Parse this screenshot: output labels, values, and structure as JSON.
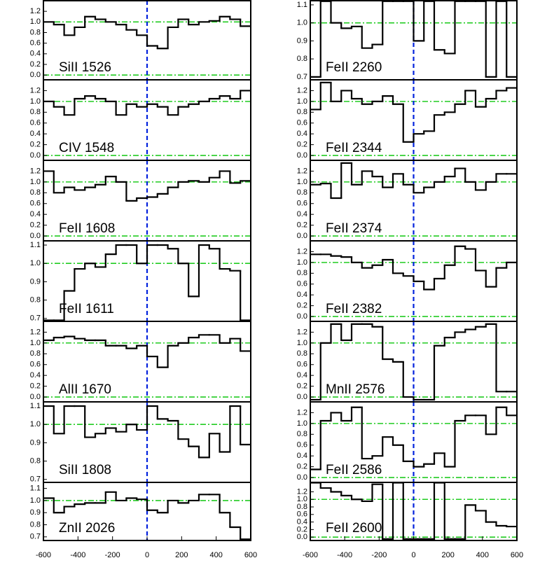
{
  "chart_data": [
    {
      "type": "step",
      "label": "SiII 1526",
      "xlim": [
        -600,
        600
      ],
      "ylim": [
        -0.09,
        1.4
      ],
      "yticks": [
        {
          "value": 0,
          "label": "0.0"
        },
        0.2,
        0.4,
        0.6,
        0.8,
        {
          "value": 1,
          "label": "1.0"
        },
        1.2
      ],
      "hlines": [
        0,
        1
      ],
      "vlines": [
        0
      ],
      "color": "#000000",
      "x": [
        -570,
        -510,
        -450,
        -390,
        -330,
        -270,
        -210,
        -150,
        -90,
        -30,
        30,
        90,
        150,
        210,
        270,
        330,
        390,
        450,
        510,
        570
      ],
      "values": [
        1.0,
        0.95,
        0.75,
        0.9,
        1.1,
        1.05,
        1.0,
        0.95,
        0.85,
        0.75,
        0.55,
        0.5,
        0.9,
        1.05,
        0.95,
        1.0,
        1.02,
        1.1,
        1.05,
        0.92
      ]
    },
    {
      "type": "step",
      "label": "CIV 1548",
      "xlim": [
        -600,
        600
      ],
      "ylim": [
        -0.09,
        1.4
      ],
      "yticks": [
        {
          "value": 0,
          "label": "0.0"
        },
        0.2,
        0.4,
        0.6,
        0.8,
        {
          "value": 1,
          "label": "1.0"
        },
        1.2
      ],
      "hlines": [
        0,
        1
      ],
      "vlines": [
        0
      ],
      "color": "#000000",
      "x": [
        -570,
        -510,
        -450,
        -390,
        -330,
        -270,
        -210,
        -150,
        -90,
        -30,
        30,
        90,
        150,
        210,
        270,
        330,
        390,
        450,
        510,
        570
      ],
      "values": [
        1.0,
        0.9,
        0.75,
        1.05,
        1.1,
        1.05,
        1.0,
        0.75,
        0.95,
        0.9,
        0.95,
        0.9,
        0.75,
        0.9,
        0.95,
        1.0,
        1.05,
        1.1,
        1.05,
        1.2
      ]
    },
    {
      "type": "step",
      "label": "FeII 1608",
      "xlim": [
        -600,
        600
      ],
      "ylim": [
        -0.09,
        1.4
      ],
      "yticks": [
        {
          "value": 0,
          "label": "0.0"
        },
        0.2,
        0.4,
        0.6,
        0.8,
        {
          "value": 1,
          "label": "1.0"
        },
        1.2
      ],
      "hlines": [
        0,
        1
      ],
      "vlines": [
        0
      ],
      "color": "#000000",
      "x": [
        -570,
        -510,
        -450,
        -390,
        -330,
        -270,
        -210,
        -150,
        -90,
        -30,
        30,
        90,
        150,
        210,
        270,
        330,
        390,
        450,
        510,
        570
      ],
      "values": [
        1.2,
        0.8,
        0.9,
        0.85,
        0.9,
        0.95,
        1.1,
        1.0,
        0.65,
        0.7,
        0.72,
        0.78,
        0.9,
        1.0,
        1.02,
        1.0,
        1.08,
        1.2,
        0.98,
        1.02
      ]
    },
    {
      "type": "step",
      "label": "FeII 1611",
      "xlim": [
        -600,
        600
      ],
      "ylim": [
        0.684,
        1.123
      ],
      "yticks": [
        0.7,
        0.8,
        0.9,
        {
          "value": 1,
          "label": "1.0"
        },
        1.1
      ],
      "hlines": [
        1
      ],
      "vlines": [
        0
      ],
      "color": "#000000",
      "x": [
        -570,
        -510,
        -450,
        -390,
        -330,
        -270,
        -210,
        -150,
        -90,
        -30,
        30,
        90,
        150,
        210,
        270,
        330,
        390,
        450,
        510,
        570
      ],
      "values": [
        0.69,
        0.69,
        0.85,
        0.97,
        1.0,
        0.98,
        1.05,
        1.1,
        1.1,
        1.0,
        1.1,
        1.1,
        1.08,
        1.0,
        0.82,
        1.1,
        1.08,
        0.97,
        0.96,
        0.69
      ]
    },
    {
      "type": "step",
      "label": "AlII 1670",
      "xlim": [
        -600,
        600
      ],
      "ylim": [
        -0.09,
        1.4
      ],
      "yticks": [
        {
          "value": 0,
          "label": "0.0"
        },
        0.2,
        0.4,
        0.6,
        0.8,
        {
          "value": 1,
          "label": "1.0"
        },
        1.2
      ],
      "hlines": [
        0,
        1
      ],
      "vlines": [
        0
      ],
      "color": "#000000",
      "x": [
        -570,
        -510,
        -450,
        -390,
        -330,
        -270,
        -210,
        -150,
        -90,
        -30,
        30,
        90,
        150,
        210,
        270,
        330,
        390,
        450,
        510,
        570
      ],
      "values": [
        1.05,
        1.1,
        1.12,
        1.08,
        1.05,
        1.05,
        0.95,
        0.95,
        0.9,
        0.95,
        0.75,
        0.55,
        0.95,
        1.0,
        1.1,
        1.15,
        1.15,
        1.0,
        1.08,
        0.85
      ]
    },
    {
      "type": "step",
      "label": "SiII 1808",
      "xlim": [
        -600,
        600
      ],
      "ylim": [
        0.684,
        1.123
      ],
      "yticks": [
        0.7,
        0.8,
        0.9,
        {
          "value": 1,
          "label": "1.0"
        },
        1.1
      ],
      "hlines": [
        1
      ],
      "vlines": [
        0
      ],
      "color": "#000000",
      "x": [
        -570,
        -510,
        -450,
        -390,
        -330,
        -270,
        -210,
        -150,
        -90,
        -30,
        30,
        90,
        150,
        210,
        270,
        330,
        390,
        450,
        510,
        570
      ],
      "values": [
        1.1,
        0.95,
        1.1,
        1.1,
        0.93,
        0.95,
        0.98,
        0.96,
        1.0,
        0.97,
        1.1,
        1.03,
        1.02,
        0.92,
        0.88,
        0.82,
        0.95,
        0.85,
        1.1,
        0.89
      ]
    },
    {
      "type": "step",
      "label": "ZnII 2026",
      "xlim": [
        -600,
        600
      ],
      "ylim": [
        0.67,
        1.15
      ],
      "yticks": [
        0.7,
        0.8,
        0.9,
        {
          "value": 1,
          "label": "1.0"
        },
        1.1
      ],
      "xticks": [
        -600,
        -400,
        -200,
        0,
        200,
        400,
        600
      ],
      "hlines": [
        1
      ],
      "vlines": [
        0
      ],
      "color": "#000000",
      "x": [
        -570,
        -510,
        -450,
        -390,
        -330,
        -270,
        -210,
        -150,
        -90,
        -30,
        30,
        90,
        150,
        210,
        270,
        330,
        390,
        450,
        510,
        570
      ],
      "values": [
        1.02,
        0.9,
        0.95,
        0.97,
        0.98,
        0.98,
        1.07,
        1.0,
        1.02,
        1.01,
        0.92,
        0.9,
        1.0,
        0.98,
        1.0,
        1.05,
        1.05,
        0.9,
        0.78,
        0.68
      ]
    },
    {
      "type": "step",
      "label": "FeII 2260",
      "xlim": [
        -600,
        600
      ],
      "ylim": [
        0.684,
        1.123
      ],
      "yticks": [
        0.7,
        0.8,
        0.9,
        {
          "value": 1,
          "label": "1.0"
        },
        1.1
      ],
      "hlines": [
        1
      ],
      "vlines": [
        0
      ],
      "color": "#000000",
      "x": [
        -570,
        -510,
        -450,
        -390,
        -330,
        -270,
        -210,
        -150,
        -90,
        -30,
        30,
        90,
        150,
        210,
        270,
        330,
        390,
        450,
        510,
        570
      ],
      "values": [
        0.7,
        1.12,
        1.0,
        0.97,
        0.98,
        0.86,
        0.88,
        1.12,
        1.12,
        1.12,
        0.9,
        1.12,
        0.85,
        0.83,
        1.12,
        1.12,
        1.12,
        0.7,
        1.12,
        0.7
      ]
    },
    {
      "type": "step",
      "label": "FeII 2344",
      "xlim": [
        -600,
        600
      ],
      "ylim": [
        -0.09,
        1.4
      ],
      "yticks": [
        {
          "value": 0,
          "label": "0.0"
        },
        0.2,
        0.4,
        0.6,
        0.8,
        {
          "value": 1,
          "label": "1.0"
        },
        1.2
      ],
      "hlines": [
        0,
        1
      ],
      "vlines": [
        0
      ],
      "color": "#000000",
      "x": [
        -570,
        -510,
        -450,
        -390,
        -330,
        -270,
        -210,
        -150,
        -90,
        -30,
        30,
        90,
        150,
        210,
        270,
        330,
        390,
        450,
        510,
        570
      ],
      "values": [
        0.85,
        1.35,
        1.0,
        1.2,
        1.05,
        0.95,
        1.0,
        1.1,
        0.95,
        0.25,
        0.4,
        0.45,
        0.75,
        0.8,
        0.95,
        1.2,
        0.9,
        1.05,
        1.2,
        1.25
      ]
    },
    {
      "type": "step",
      "label": "FeII 2374",
      "xlim": [
        -600,
        600
      ],
      "ylim": [
        -0.09,
        1.4
      ],
      "yticks": [
        {
          "value": 0,
          "label": "0.0"
        },
        0.2,
        0.4,
        0.6,
        0.8,
        {
          "value": 1,
          "label": "1.0"
        },
        1.2
      ],
      "hlines": [
        0,
        1
      ],
      "vlines": [
        0
      ],
      "color": "#000000",
      "x": [
        -570,
        -510,
        -450,
        -390,
        -330,
        -270,
        -210,
        -150,
        -90,
        -30,
        30,
        90,
        150,
        210,
        270,
        330,
        390,
        450,
        510,
        570
      ],
      "values": [
        0.95,
        0.97,
        0.7,
        1.35,
        0.95,
        1.2,
        1.1,
        0.9,
        1.15,
        0.95,
        0.8,
        0.9,
        1.0,
        1.1,
        1.25,
        1.0,
        0.85,
        1.0,
        1.15,
        1.15
      ]
    },
    {
      "type": "step",
      "label": "FeII 2382",
      "xlim": [
        -600,
        600
      ],
      "ylim": [
        -0.09,
        1.4
      ],
      "yticks": [
        {
          "value": 0,
          "label": "0.0"
        },
        0.2,
        0.4,
        0.6,
        0.8,
        {
          "value": 1,
          "label": "1.0"
        },
        1.2
      ],
      "hlines": [
        0,
        1
      ],
      "vlines": [
        0
      ],
      "color": "#000000",
      "x": [
        -570,
        -510,
        -450,
        -390,
        -330,
        -270,
        -210,
        -150,
        -90,
        -30,
        30,
        90,
        150,
        210,
        270,
        330,
        390,
        450,
        510,
        570
      ],
      "values": [
        1.15,
        1.15,
        1.12,
        1.1,
        1.0,
        0.9,
        0.95,
        1.05,
        0.8,
        0.75,
        0.65,
        0.5,
        0.7,
        0.95,
        1.3,
        1.25,
        0.85,
        0.55,
        0.9,
        1.0
      ]
    },
    {
      "type": "step",
      "label": "MnII 2576",
      "xlim": [
        -600,
        600
      ],
      "ylim": [
        -0.09,
        1.4
      ],
      "yticks": [
        {
          "value": 0,
          "label": "0.0"
        },
        0.2,
        0.4,
        0.6,
        0.8,
        {
          "value": 1,
          "label": "1.0"
        },
        1.2
      ],
      "hlines": [
        0,
        1
      ],
      "vlines": [
        0
      ],
      "color": "#000000",
      "x": [
        -570,
        -510,
        -450,
        -390,
        -330,
        -270,
        -210,
        -150,
        -90,
        -30,
        30,
        90,
        150,
        210,
        270,
        330,
        390,
        450,
        510,
        570
      ],
      "values": [
        -0.05,
        1.0,
        1.35,
        1.05,
        1.35,
        1.35,
        1.3,
        0.7,
        0.65,
        0.0,
        -0.05,
        -0.05,
        0.95,
        1.1,
        1.2,
        1.25,
        1.3,
        1.35,
        0.1,
        0.1
      ]
    },
    {
      "type": "step",
      "label": "FeII 2586",
      "xlim": [
        -600,
        600
      ],
      "ylim": [
        -0.09,
        1.4
      ],
      "yticks": [
        {
          "value": 0,
          "label": "0.0"
        },
        0.2,
        0.4,
        0.6,
        0.8,
        {
          "value": 1,
          "label": "1.0"
        },
        1.2
      ],
      "hlines": [
        0,
        1
      ],
      "vlines": [
        0
      ],
      "color": "#000000",
      "x": [
        -570,
        -510,
        -450,
        -390,
        -330,
        -270,
        -210,
        -150,
        -90,
        -30,
        30,
        90,
        150,
        210,
        270,
        330,
        390,
        450,
        510,
        570
      ],
      "values": [
        0.15,
        1.05,
        1.2,
        1.05,
        1.3,
        0.35,
        0.4,
        0.75,
        0.6,
        0.3,
        0.2,
        0.25,
        0.45,
        0.2,
        1.05,
        1.15,
        1.15,
        0.8,
        1.3,
        1.15
      ]
    },
    {
      "type": "step",
      "label": "FeII 2600",
      "xlim": [
        -600,
        600
      ],
      "ylim": [
        -0.09,
        1.45
      ],
      "yticks": [
        {
          "value": 0,
          "label": "0.0"
        },
        0.2,
        0.4,
        0.6,
        0.8,
        {
          "value": 1,
          "label": "1.0"
        },
        1.2
      ],
      "xticks": [
        -600,
        -400,
        -200,
        0,
        200,
        400,
        600
      ],
      "hlines": [
        0,
        1
      ],
      "vlines": [
        0
      ],
      "color": "#000000",
      "x": [
        -570,
        -510,
        -450,
        -390,
        -330,
        -270,
        -210,
        -150,
        -90,
        -30,
        30,
        90,
        150,
        210,
        270,
        330,
        390,
        450,
        510,
        570
      ],
      "values": [
        1.44,
        1.3,
        1.2,
        1.1,
        1.0,
        0.95,
        1.4,
        -0.05,
        1.44,
        -0.05,
        -0.05,
        -0.05,
        1.44,
        -0.05,
        -0.05,
        0.85,
        0.7,
        0.4,
        0.3,
        0.28
      ]
    }
  ]
}
